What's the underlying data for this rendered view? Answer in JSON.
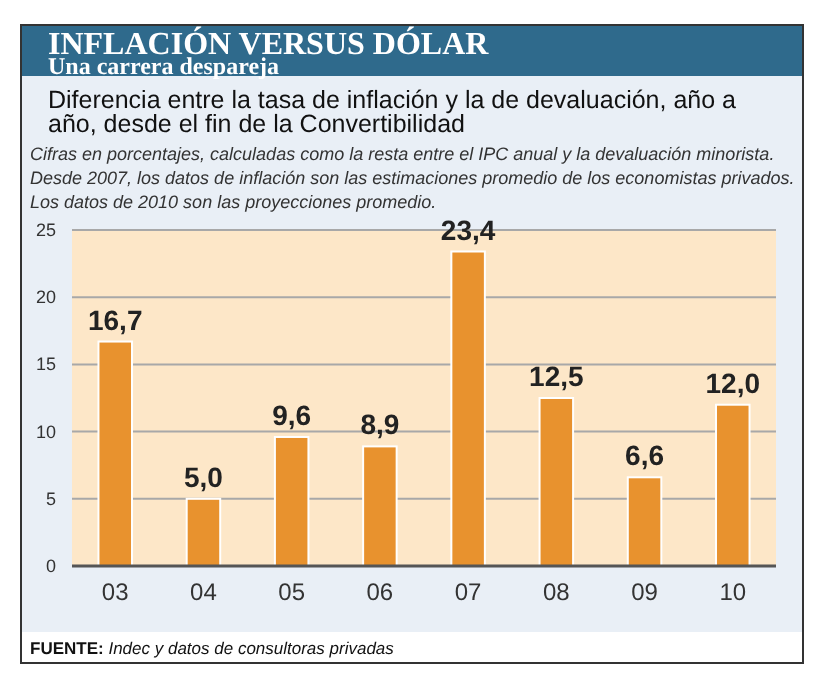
{
  "chart_data": {
    "type": "bar",
    "title": "INFLACIÓN VERSUS DÓLAR",
    "subtitle": "Una carrera despareja",
    "annotations": [
      "Diferencia entre la tasa de inflación y la de devaluación, año a año, desde el fin de la Convertibilidad",
      "Cifras en porcentajes, calculadas como la resta entre el IPC anual y la devaluación minorista. Desde 2007, los datos de inflación son las estimaciones promedio de los economistas privados. Los datos de 2010 son las proyecciones promedio.",
      "FUENTE: Indec y datos de consultoras privadas"
    ],
    "categories": [
      "03",
      "04",
      "05",
      "06",
      "07",
      "08",
      "09",
      "10"
    ],
    "values": [
      16.7,
      5.0,
      9.6,
      8.9,
      23.4,
      12.5,
      6.6,
      12.0
    ],
    "value_labels": [
      "16,7",
      "5,0",
      "9,6",
      "8,9",
      "23,4",
      "12,5",
      "6,6",
      "12,0"
    ],
    "color": "#e8922e",
    "ylim": [
      0,
      25
    ],
    "yticks": [
      0,
      5,
      10,
      15,
      20,
      25
    ],
    "grid": "y"
  }
}
